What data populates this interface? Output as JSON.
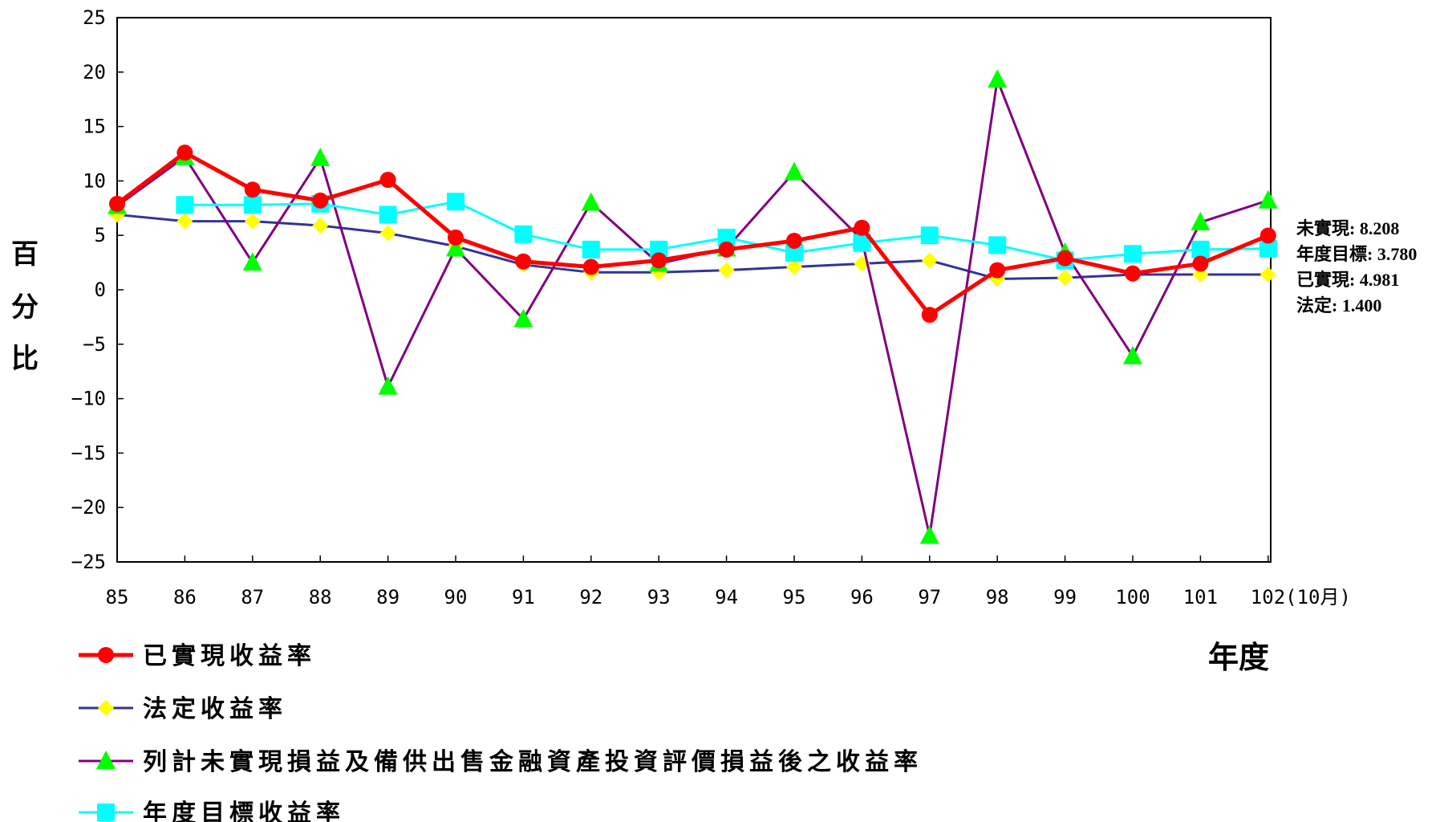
{
  "chart_data": {
    "type": "line",
    "categories": [
      "85",
      "86",
      "87",
      "88",
      "89",
      "90",
      "91",
      "92",
      "93",
      "94",
      "95",
      "96",
      "97",
      "98",
      "99",
      "100",
      "101",
      "102(10月)"
    ],
    "ylim": [
      -25,
      25
    ],
    "yticks": [
      25,
      20,
      15,
      10,
      5,
      0,
      -5,
      -10,
      -15,
      -20,
      -25
    ],
    "ylabel": "百分比",
    "xlabel": "年度",
    "grid": false,
    "legend_position": "bottom-left",
    "series": [
      {
        "name": "已實現收益率",
        "color": "#ff0000",
        "marker": "circle",
        "values": [
          7.9,
          12.6,
          9.2,
          8.2,
          10.1,
          4.8,
          2.6,
          2.1,
          2.7,
          3.7,
          4.5,
          5.7,
          -2.3,
          1.8,
          2.9,
          1.5,
          2.4,
          4.981
        ]
      },
      {
        "name": "法定收益率",
        "color": "#333399",
        "marker": "diamond",
        "marker_color": "#ffff00",
        "values": [
          6.9,
          6.3,
          6.3,
          5.9,
          5.2,
          4.0,
          2.3,
          1.6,
          1.6,
          1.8,
          2.1,
          2.4,
          2.7,
          1.0,
          1.1,
          1.4,
          1.4,
          1.4
        ]
      },
      {
        "name": "列計未實現損益及備供出售金融資產投資評價損益後之收益率",
        "color": "#800080",
        "marker": "triangle",
        "marker_color": "#00ff00",
        "values": [
          7.7,
          12.2,
          2.5,
          12.1,
          -8.9,
          3.8,
          -2.7,
          8.0,
          2.4,
          3.8,
          10.8,
          4.6,
          -22.6,
          19.3,
          3.4,
          -6.1,
          6.2,
          8.208
        ]
      },
      {
        "name": "年度目標收益率",
        "color": "#00ffff",
        "marker": "square",
        "values": [
          null,
          7.8,
          7.8,
          7.9,
          6.9,
          8.1,
          5.1,
          3.7,
          3.7,
          4.8,
          3.4,
          4.3,
          5.0,
          4.1,
          2.7,
          3.3,
          3.7,
          3.78
        ]
      }
    ],
    "annotations": [
      "未實現: 8.208",
      "年度目標: 3.780",
      "已實現: 4.981",
      "法定: 1.400"
    ]
  }
}
